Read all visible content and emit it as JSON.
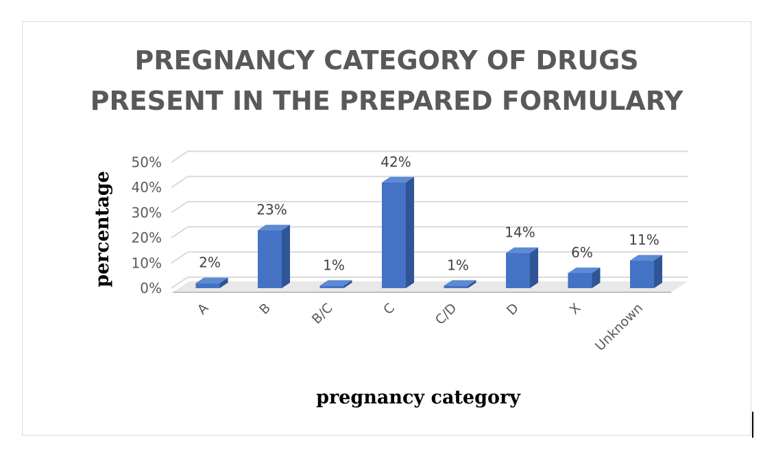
{
  "chart_data": {
    "type": "bar",
    "title_lines": [
      "PREGNANCY CATEGORY OF DRUGS",
      "PRESENT IN THE PREPARED FORMULARY"
    ],
    "xlabel": "pregnancy category",
    "ylabel": "percentage",
    "categories": [
      "A",
      "B",
      "B/C",
      "C",
      "C/D",
      "D",
      "X",
      "Unknown"
    ],
    "values": [
      2,
      23,
      1,
      42,
      1,
      14,
      6,
      11
    ],
    "data_labels": [
      "2%",
      "23%",
      "1%",
      "42%",
      "1%",
      "14%",
      "6%",
      "11%"
    ],
    "yticks": [
      "0%",
      "10%",
      "20%",
      "30%",
      "40%",
      "50%"
    ],
    "ylim": [
      0,
      50
    ],
    "grid": true,
    "legend": false,
    "style": "3d-column",
    "colors": {
      "bar_front": "#4472c4",
      "bar_side": "#2f5597",
      "bar_top": "#5b8bd5",
      "text": "#595959",
      "grid": "#d9d9d9"
    }
  }
}
